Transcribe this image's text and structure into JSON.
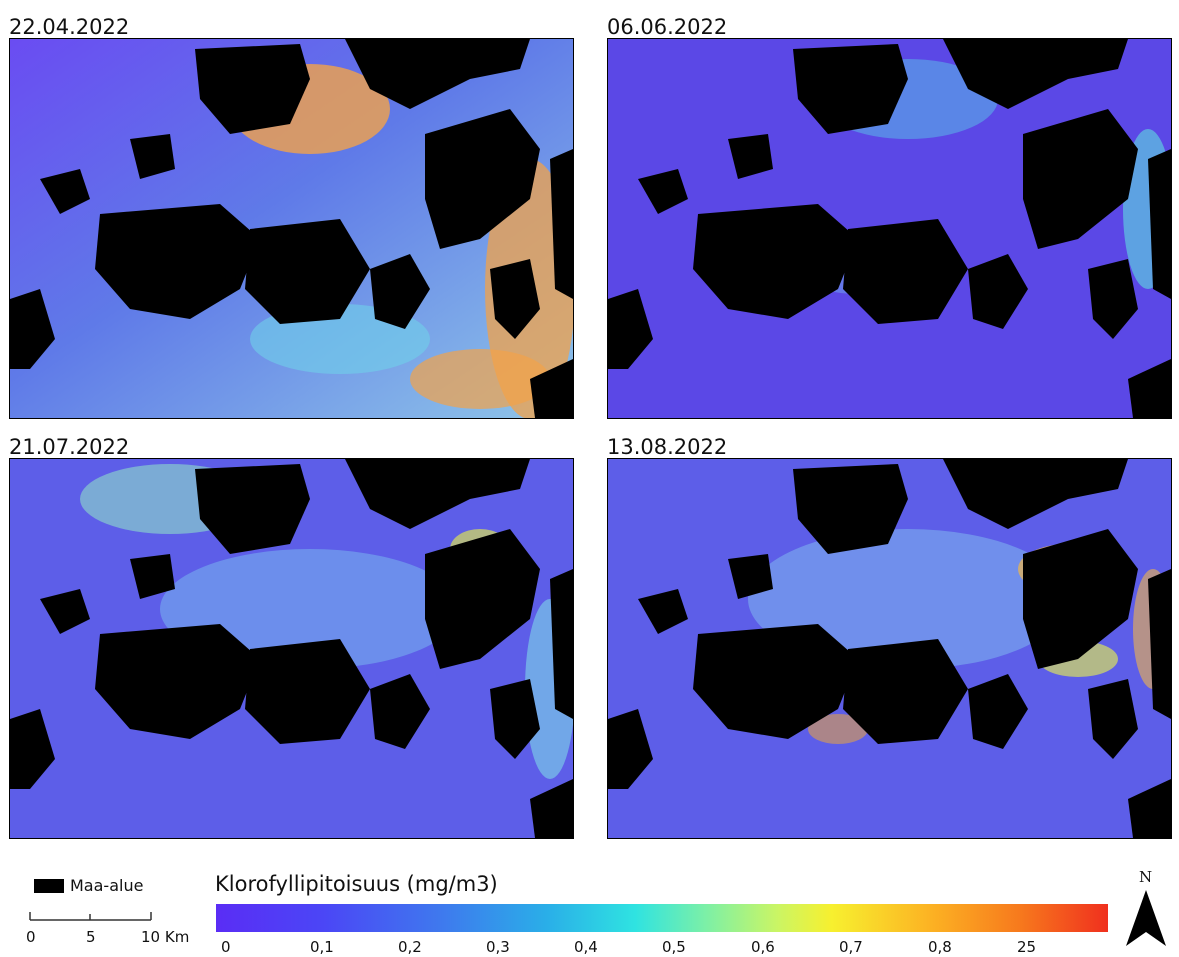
{
  "panels": [
    {
      "date": "22.04.2022"
    },
    {
      "date": "06.06.2022"
    },
    {
      "date": "21.07.2022"
    },
    {
      "date": "13.08.2022"
    }
  ],
  "legend": {
    "land_label": "Maa-alue",
    "land_color": "#000000",
    "scalebar_labels": [
      "0",
      "5",
      "10 Km"
    ],
    "colorbar_title": "Klorofyllipitoisuus (mg/m3)",
    "colorbar_ticks": [
      "0",
      "0,1",
      "0,2",
      "0,3",
      "0,4",
      "0,5",
      "0,6",
      "0,7",
      "0,8",
      "25"
    ],
    "colorbar_colors": [
      "#5a2df5",
      "#3f78ee",
      "#2aaee8",
      "#2fe3e1",
      "#cbf564",
      "#f7f02f",
      "#fcb323",
      "#f77a1d",
      "#f0301e"
    ]
  },
  "north_arrow": {
    "letter": "N",
    "icon": "north-arrow-icon"
  }
}
